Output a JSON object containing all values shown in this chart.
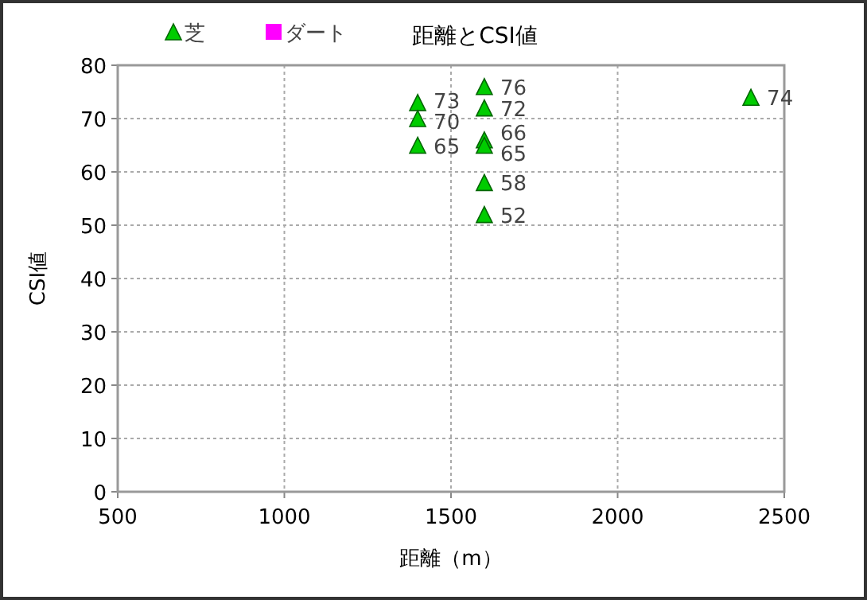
{
  "chart_data": {
    "type": "scatter",
    "title": "距離とCSI値",
    "xlabel": "距離（m）",
    "ylabel": "CSI値",
    "series": [
      {
        "name": "芝",
        "color": "#00cc00",
        "marker": "triangle",
        "x": [
          1400,
          1400,
          1400,
          1600,
          1600,
          1600,
          1600,
          1600,
          1600,
          2400
        ],
        "values": [
          73,
          70,
          65,
          76,
          72,
          66,
          65,
          58,
          52,
          74
        ]
      },
      {
        "name": "ダート",
        "color": "#ff00ff",
        "marker": "square"
      }
    ],
    "xlim": [
      500,
      2500
    ],
    "xticks": [
      500,
      1000,
      1500,
      2000,
      2500
    ],
    "ylim": [
      0,
      80
    ],
    "yticks": [
      0,
      10,
      20,
      30,
      40,
      50,
      60,
      70,
      80
    ],
    "grid": true,
    "legend": "top left",
    "data_labels": true
  }
}
